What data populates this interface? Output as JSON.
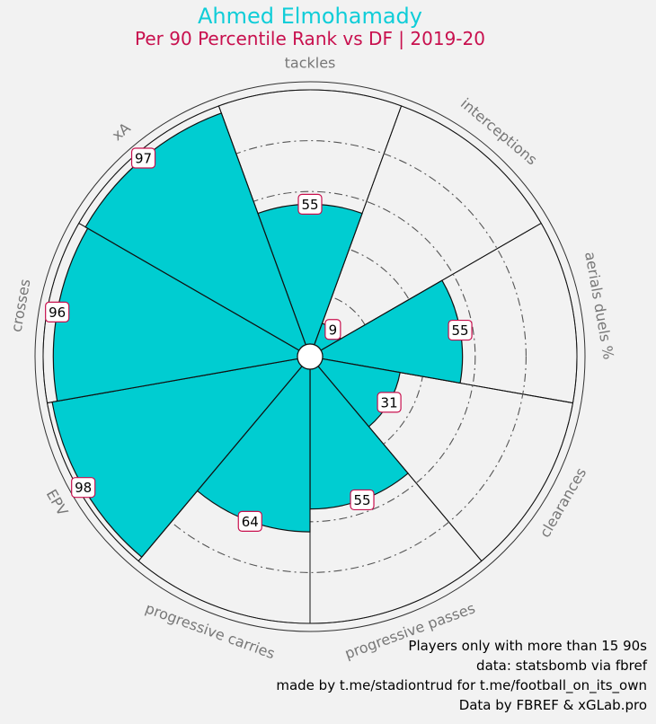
{
  "header": {
    "player_name": "Ahmed Elmohamady",
    "subtitle": "Per 90 Percentile Rank vs DF | 2019-20"
  },
  "colors": {
    "player_name": "#10cdd8",
    "subtitle": "#c8104e",
    "slice_fill": "#00cdd1",
    "label_border": "#c8104e",
    "category_text": "#777777"
  },
  "chart_data": {
    "type": "radar",
    "title": "Ahmed Elmohamady",
    "subtitle": "Per 90 Percentile Rank vs DF | 2019-20",
    "rlim": [
      0,
      100
    ],
    "grid": true,
    "categories": [
      "tackles",
      "interceptions",
      "aerials duels %",
      "clearances",
      "progressive passes",
      "progressive carries",
      "EPV",
      "crosses",
      "xA"
    ],
    "values": [
      55,
      9,
      55,
      31,
      55,
      64,
      98,
      96,
      97
    ]
  },
  "footer": {
    "lines": [
      "Players only with more than 15 90s",
      "data: statsbomb via fbref",
      "made by t.me/stadiontrud for t.me/football_on_its_own",
      "Data by FBREF & xGLab.pro"
    ]
  }
}
